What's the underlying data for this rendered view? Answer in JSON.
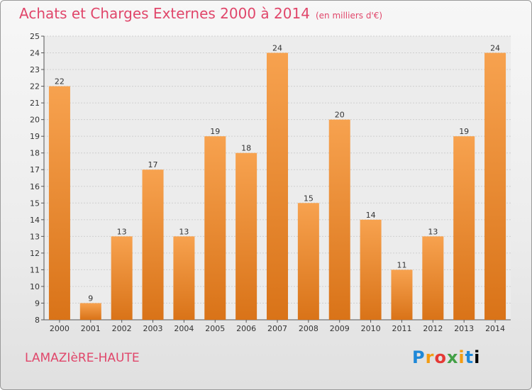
{
  "header": {
    "title": "Achats et Charges Externes 2000 à 2014",
    "unit": "(en milliers d'€)"
  },
  "footer": {
    "place": "LAMAZIèRE-HAUTE",
    "logo": [
      "P",
      "r",
      "o",
      "x",
      "i",
      "t",
      "i"
    ]
  },
  "colors": {
    "title": "#e0466a",
    "bar_light": "#f7a24f",
    "bar_dark": "#d97318"
  },
  "chart_data": {
    "type": "bar",
    "title": "Achats et Charges Externes 2000 à 2014",
    "subtitle": "(en milliers d'€)",
    "categories": [
      "2000",
      "2001",
      "2002",
      "2003",
      "2004",
      "2005",
      "2006",
      "2007",
      "2008",
      "2009",
      "2010",
      "2011",
      "2012",
      "2013",
      "2014"
    ],
    "values": [
      22,
      9,
      13,
      17,
      13,
      19,
      18,
      24,
      15,
      20,
      14,
      11,
      13,
      19,
      24
    ],
    "ylim": [
      8,
      25
    ],
    "yticks": [
      8,
      9,
      10,
      11,
      12,
      13,
      14,
      15,
      16,
      17,
      18,
      19,
      20,
      21,
      22,
      23,
      24,
      25
    ],
    "grid": true,
    "legend": "none"
  }
}
